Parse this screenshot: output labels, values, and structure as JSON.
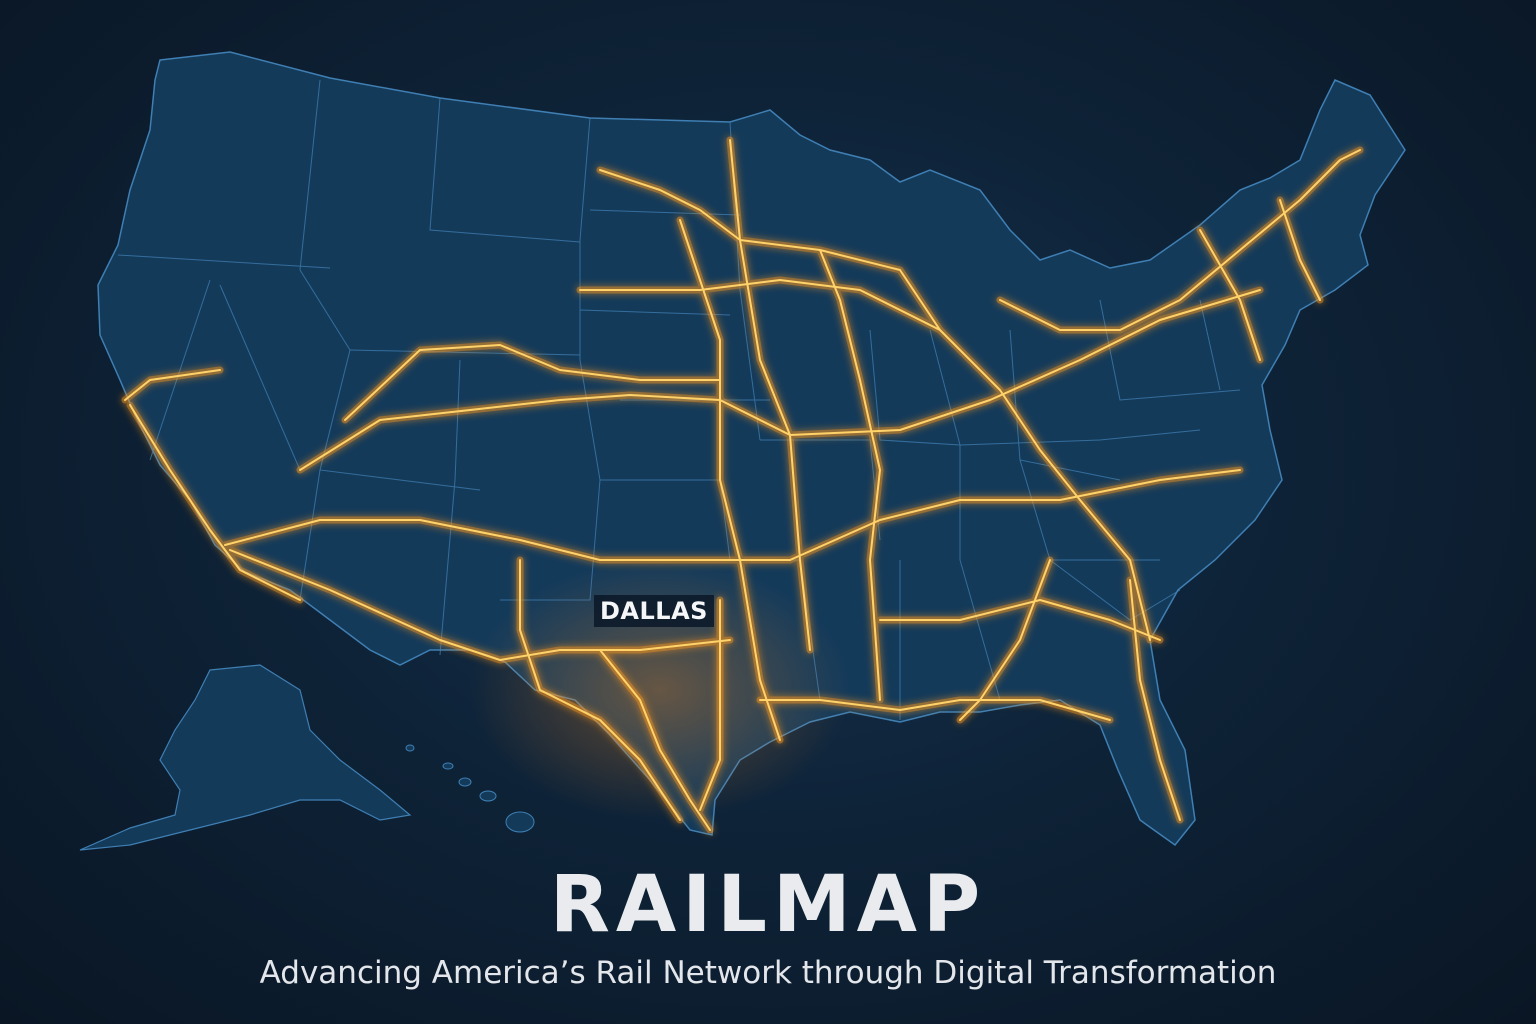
{
  "title": "RAILMAP",
  "subtitle": "Advancing America’s Rail Network through Digital Transformation",
  "city_label": "DALLAS",
  "colors": {
    "background": "#0e2338",
    "land": "#143a5a",
    "state_borders": "#3f7fb3",
    "rail_glow": "#ff9a1a",
    "rail_core": "#ffd36a",
    "text": "#e9ebee"
  }
}
